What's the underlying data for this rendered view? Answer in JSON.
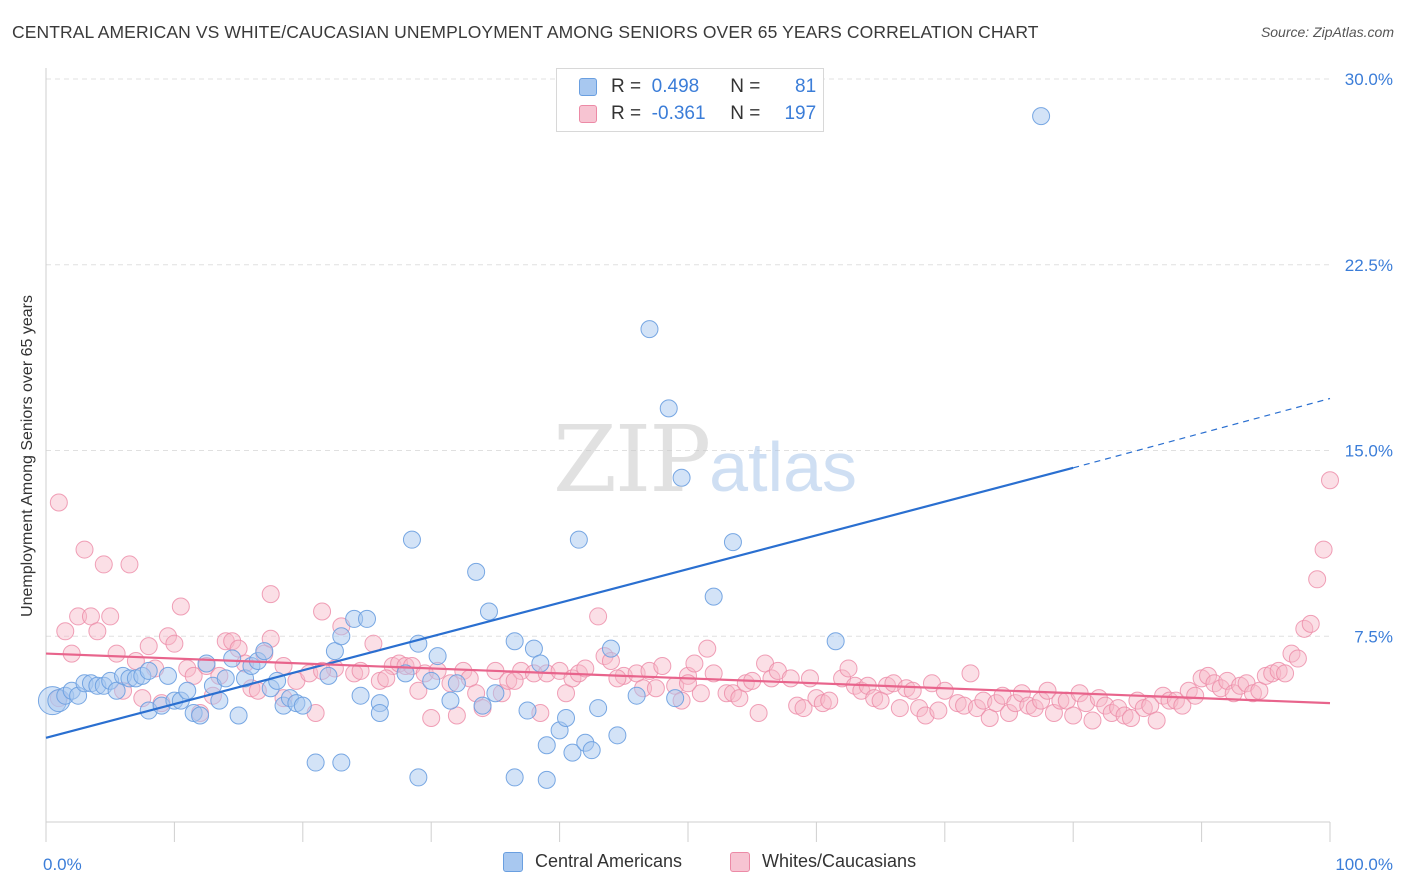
{
  "title": "CENTRAL AMERICAN VS WHITE/CAUCASIAN UNEMPLOYMENT AMONG SENIORS OVER 65 YEARS CORRELATION CHART",
  "source": "Source: ZipAtlas.com",
  "watermark": {
    "part1": "ZIP",
    "part2": "atlas"
  },
  "colors": {
    "blue_fill": "#a8c8f0",
    "blue_stroke": "#6a9fe0",
    "blue_line": "#2a6fd0",
    "pink_fill": "#f7b8c8",
    "pink_stroke": "#ec8aa6",
    "pink_line": "#e8648c",
    "axis_text": "#3b7dd8",
    "grid": "#e0e0e0"
  },
  "legend": {
    "rows": [
      {
        "r_label": "R =",
        "r_value": "0.498",
        "n_label": "N =",
        "n_value": "81",
        "swatch": "blue"
      },
      {
        "r_label": "R =",
        "r_value": "-0.361",
        "n_label": "N =",
        "n_value": "197",
        "swatch": "pink"
      }
    ]
  },
  "bottom_legend": {
    "series1": "Central Americans",
    "series2": "Whites/Caucasians"
  },
  "chart_data": {
    "type": "scatter",
    "xlabel": "",
    "ylabel": "Unemployment Among Seniors over 65 years",
    "xlim": [
      0,
      100
    ],
    "ylim": [
      0,
      30
    ],
    "x_tick_labels": [
      "0.0%",
      "100.0%"
    ],
    "y_ticks": [
      7.5,
      15.0,
      22.5,
      30.0
    ],
    "y_tick_labels": [
      "7.5%",
      "15.0%",
      "22.5%",
      "30.0%"
    ],
    "grid": "horizontal dashed",
    "series": [
      {
        "name": "Central Americans",
        "color": "blue",
        "trend": {
          "x": [
            0,
            80
          ],
          "y": [
            3.4,
            14.3
          ],
          "dashed_to": [
            100,
            17.1
          ]
        },
        "points": [
          [
            0.5,
            4.9
          ],
          [
            1.0,
            4.9
          ],
          [
            1.5,
            5.1
          ],
          [
            2.0,
            5.3
          ],
          [
            2.5,
            5.1
          ],
          [
            3.0,
            5.6
          ],
          [
            3.5,
            5.6
          ],
          [
            4.0,
            5.5
          ],
          [
            4.5,
            5.5
          ],
          [
            5.0,
            5.7
          ],
          [
            5.5,
            5.3
          ],
          [
            6.0,
            5.9
          ],
          [
            6.5,
            5.8
          ],
          [
            7.0,
            5.8
          ],
          [
            7.5,
            5.9
          ],
          [
            8.0,
            6.1
          ],
          [
            8.0,
            4.5
          ],
          [
            9.0,
            4.7
          ],
          [
            9.5,
            5.9
          ],
          [
            10.0,
            4.9
          ],
          [
            10.5,
            4.9
          ],
          [
            11.0,
            5.3
          ],
          [
            11.5,
            4.4
          ],
          [
            12.0,
            4.3
          ],
          [
            12.5,
            6.4
          ],
          [
            13.0,
            5.5
          ],
          [
            13.5,
            4.9
          ],
          [
            14.0,
            5.8
          ],
          [
            14.5,
            6.6
          ],
          [
            15.0,
            4.3
          ],
          [
            15.5,
            5.8
          ],
          [
            16.0,
            6.3
          ],
          [
            16.5,
            6.5
          ],
          [
            17.0,
            6.9
          ],
          [
            17.5,
            5.4
          ],
          [
            18.0,
            5.7
          ],
          [
            18.5,
            4.7
          ],
          [
            19.0,
            5.0
          ],
          [
            19.5,
            4.8
          ],
          [
            20.0,
            4.7
          ],
          [
            21.0,
            2.4
          ],
          [
            22.0,
            5.9
          ],
          [
            22.5,
            6.9
          ],
          [
            23.0,
            2.4
          ],
          [
            23.0,
            7.5
          ],
          [
            24.0,
            8.2
          ],
          [
            24.5,
            5.1
          ],
          [
            25.0,
            8.2
          ],
          [
            26.0,
            4.8
          ],
          [
            26.0,
            4.4
          ],
          [
            28.0,
            6.0
          ],
          [
            28.5,
            11.4
          ],
          [
            29.0,
            7.2
          ],
          [
            29.0,
            1.8
          ],
          [
            30.0,
            5.7
          ],
          [
            30.5,
            6.7
          ],
          [
            31.5,
            4.9
          ],
          [
            32.0,
            5.6
          ],
          [
            33.5,
            10.1
          ],
          [
            34.0,
            4.7
          ],
          [
            34.5,
            8.5
          ],
          [
            35.0,
            5.2
          ],
          [
            36.5,
            1.8
          ],
          [
            36.5,
            7.3
          ],
          [
            37.5,
            4.5
          ],
          [
            38.0,
            7.0
          ],
          [
            38.5,
            6.4
          ],
          [
            39.0,
            1.7
          ],
          [
            39.0,
            3.1
          ],
          [
            40.0,
            3.7
          ],
          [
            40.5,
            4.2
          ],
          [
            41.0,
            2.8
          ],
          [
            41.5,
            11.4
          ],
          [
            42.0,
            3.2
          ],
          [
            42.5,
            2.9
          ],
          [
            43.0,
            4.6
          ],
          [
            44.0,
            7.0
          ],
          [
            44.5,
            3.5
          ],
          [
            46.0,
            5.1
          ],
          [
            47.0,
            19.9
          ],
          [
            48.5,
            16.7
          ],
          [
            49.5,
            13.9
          ],
          [
            52.0,
            9.1
          ],
          [
            53.5,
            11.3
          ],
          [
            61.5,
            7.3
          ],
          [
            77.5,
            28.5
          ],
          [
            49.0,
            5.0
          ]
        ]
      },
      {
        "name": "Whites/Caucasians",
        "color": "pink",
        "trend": {
          "x": [
            0,
            100
          ],
          "y": [
            6.8,
            4.8
          ]
        },
        "points": [
          [
            1.0,
            12.9
          ],
          [
            1.0,
            5.0
          ],
          [
            1.5,
            7.7
          ],
          [
            2.0,
            6.8
          ],
          [
            2.5,
            8.3
          ],
          [
            3.0,
            11.0
          ],
          [
            3.5,
            8.3
          ],
          [
            4.0,
            7.7
          ],
          [
            4.5,
            10.4
          ],
          [
            5.0,
            8.3
          ],
          [
            5.5,
            6.8
          ],
          [
            6.0,
            5.3
          ],
          [
            6.5,
            10.4
          ],
          [
            7.0,
            6.5
          ],
          [
            7.5,
            5.0
          ],
          [
            8.0,
            7.1
          ],
          [
            8.5,
            6.2
          ],
          [
            9.0,
            4.8
          ],
          [
            9.5,
            7.5
          ],
          [
            10.0,
            7.2
          ],
          [
            10.5,
            8.7
          ],
          [
            11.0,
            6.2
          ],
          [
            11.5,
            5.9
          ],
          [
            12.0,
            4.4
          ],
          [
            12.5,
            6.3
          ],
          [
            13.0,
            5.1
          ],
          [
            13.5,
            5.9
          ],
          [
            14.0,
            7.3
          ],
          [
            14.5,
            7.3
          ],
          [
            15.0,
            7.0
          ],
          [
            15.5,
            6.4
          ],
          [
            16.0,
            5.4
          ],
          [
            16.5,
            5.3
          ],
          [
            17.0,
            6.8
          ],
          [
            17.5,
            7.4
          ],
          [
            17.5,
            9.2
          ],
          [
            18.5,
            6.3
          ],
          [
            18.5,
            5.0
          ],
          [
            19.5,
            5.7
          ],
          [
            20.5,
            6.0
          ],
          [
            21.0,
            4.4
          ],
          [
            21.5,
            8.5
          ],
          [
            22.5,
            6.2
          ],
          [
            23.0,
            7.9
          ],
          [
            24.0,
            6.0
          ],
          [
            24.5,
            6.1
          ],
          [
            25.5,
            7.2
          ],
          [
            26.0,
            5.7
          ],
          [
            27.0,
            6.3
          ],
          [
            27.5,
            6.4
          ],
          [
            28.0,
            6.3
          ],
          [
            28.5,
            6.3
          ],
          [
            29.0,
            5.3
          ],
          [
            29.5,
            6.0
          ],
          [
            30.0,
            4.2
          ],
          [
            30.5,
            6.1
          ],
          [
            31.5,
            5.6
          ],
          [
            32.0,
            4.3
          ],
          [
            32.5,
            6.1
          ],
          [
            33.0,
            5.8
          ],
          [
            33.5,
            5.2
          ],
          [
            34.0,
            4.6
          ],
          [
            35.0,
            6.1
          ],
          [
            35.5,
            5.2
          ],
          [
            36.0,
            5.7
          ],
          [
            37.0,
            6.1
          ],
          [
            38.0,
            6.0
          ],
          [
            38.5,
            4.4
          ],
          [
            39.0,
            6.0
          ],
          [
            40.0,
            6.1
          ],
          [
            40.5,
            5.2
          ],
          [
            41.0,
            5.8
          ],
          [
            41.5,
            6.0
          ],
          [
            42.0,
            6.2
          ],
          [
            43.0,
            8.3
          ],
          [
            43.5,
            6.7
          ],
          [
            44.0,
            6.5
          ],
          [
            45.0,
            5.9
          ],
          [
            46.0,
            6.0
          ],
          [
            46.5,
            5.4
          ],
          [
            47.0,
            6.1
          ],
          [
            47.5,
            5.4
          ],
          [
            48.0,
            6.3
          ],
          [
            49.0,
            5.5
          ],
          [
            49.5,
            4.9
          ],
          [
            50.0,
            5.9
          ],
          [
            50.5,
            6.4
          ],
          [
            51.0,
            5.2
          ],
          [
            51.5,
            7.0
          ],
          [
            52.0,
            6.0
          ],
          [
            53.0,
            5.2
          ],
          [
            53.5,
            5.2
          ],
          [
            54.0,
            5.0
          ],
          [
            54.5,
            5.6
          ],
          [
            55.5,
            4.4
          ],
          [
            56.0,
            6.4
          ],
          [
            56.5,
            5.8
          ],
          [
            57.0,
            6.1
          ],
          [
            58.0,
            5.8
          ],
          [
            58.5,
            4.7
          ],
          [
            59.0,
            4.6
          ],
          [
            59.5,
            5.8
          ],
          [
            60.0,
            5.0
          ],
          [
            60.5,
            4.8
          ],
          [
            61.0,
            4.9
          ],
          [
            62.0,
            5.8
          ],
          [
            62.5,
            6.2
          ],
          [
            63.0,
            5.5
          ],
          [
            63.5,
            5.3
          ],
          [
            64.0,
            5.5
          ],
          [
            64.5,
            5.0
          ],
          [
            65.0,
            4.9
          ],
          [
            65.5,
            5.5
          ],
          [
            66.0,
            5.6
          ],
          [
            66.5,
            4.6
          ],
          [
            67.0,
            5.4
          ],
          [
            67.5,
            5.3
          ],
          [
            68.0,
            4.6
          ],
          [
            68.5,
            4.3
          ],
          [
            69.0,
            5.6
          ],
          [
            69.5,
            4.5
          ],
          [
            70.0,
            5.3
          ],
          [
            71.0,
            4.8
          ],
          [
            71.5,
            4.7
          ],
          [
            72.0,
            6.0
          ],
          [
            72.5,
            4.6
          ],
          [
            73.0,
            4.9
          ],
          [
            73.5,
            4.2
          ],
          [
            74.0,
            4.8
          ],
          [
            74.5,
            5.1
          ],
          [
            75.0,
            4.4
          ],
          [
            75.5,
            4.8
          ],
          [
            76.0,
            5.2
          ],
          [
            76.5,
            4.7
          ],
          [
            77.0,
            4.6
          ],
          [
            77.5,
            4.9
          ],
          [
            78.0,
            5.3
          ],
          [
            78.5,
            4.4
          ],
          [
            79.0,
            4.9
          ],
          [
            79.5,
            4.9
          ],
          [
            80.0,
            4.3
          ],
          [
            80.5,
            5.2
          ],
          [
            81.0,
            4.8
          ],
          [
            81.5,
            4.1
          ],
          [
            82.0,
            5.0
          ],
          [
            82.5,
            4.7
          ],
          [
            83.0,
            4.4
          ],
          [
            83.5,
            4.6
          ],
          [
            84.0,
            4.3
          ],
          [
            84.5,
            4.2
          ],
          [
            85.0,
            4.9
          ],
          [
            85.5,
            4.6
          ],
          [
            86.0,
            4.7
          ],
          [
            86.5,
            4.1
          ],
          [
            87.0,
            5.1
          ],
          [
            87.5,
            4.9
          ],
          [
            88.0,
            4.9
          ],
          [
            88.5,
            4.7
          ],
          [
            89.0,
            5.3
          ],
          [
            89.5,
            5.1
          ],
          [
            90.0,
            5.8
          ],
          [
            90.5,
            5.9
          ],
          [
            91.0,
            5.6
          ],
          [
            91.5,
            5.4
          ],
          [
            92.0,
            5.7
          ],
          [
            92.5,
            5.2
          ],
          [
            93.0,
            5.5
          ],
          [
            93.5,
            5.6
          ],
          [
            94.0,
            5.2
          ],
          [
            94.5,
            5.3
          ],
          [
            95.0,
            5.9
          ],
          [
            95.5,
            6.0
          ],
          [
            96.0,
            6.1
          ],
          [
            96.5,
            6.0
          ],
          [
            97.0,
            6.8
          ],
          [
            97.5,
            6.6
          ],
          [
            98.0,
            7.8
          ],
          [
            98.5,
            8.0
          ],
          [
            99.0,
            9.8
          ],
          [
            99.5,
            11.0
          ],
          [
            100.0,
            13.8
          ],
          [
            21.5,
            6.1
          ],
          [
            26.5,
            5.8
          ],
          [
            36.5,
            5.7
          ],
          [
            44.5,
            5.8
          ],
          [
            50.0,
            5.6
          ],
          [
            55.0,
            5.7
          ]
        ]
      }
    ]
  }
}
